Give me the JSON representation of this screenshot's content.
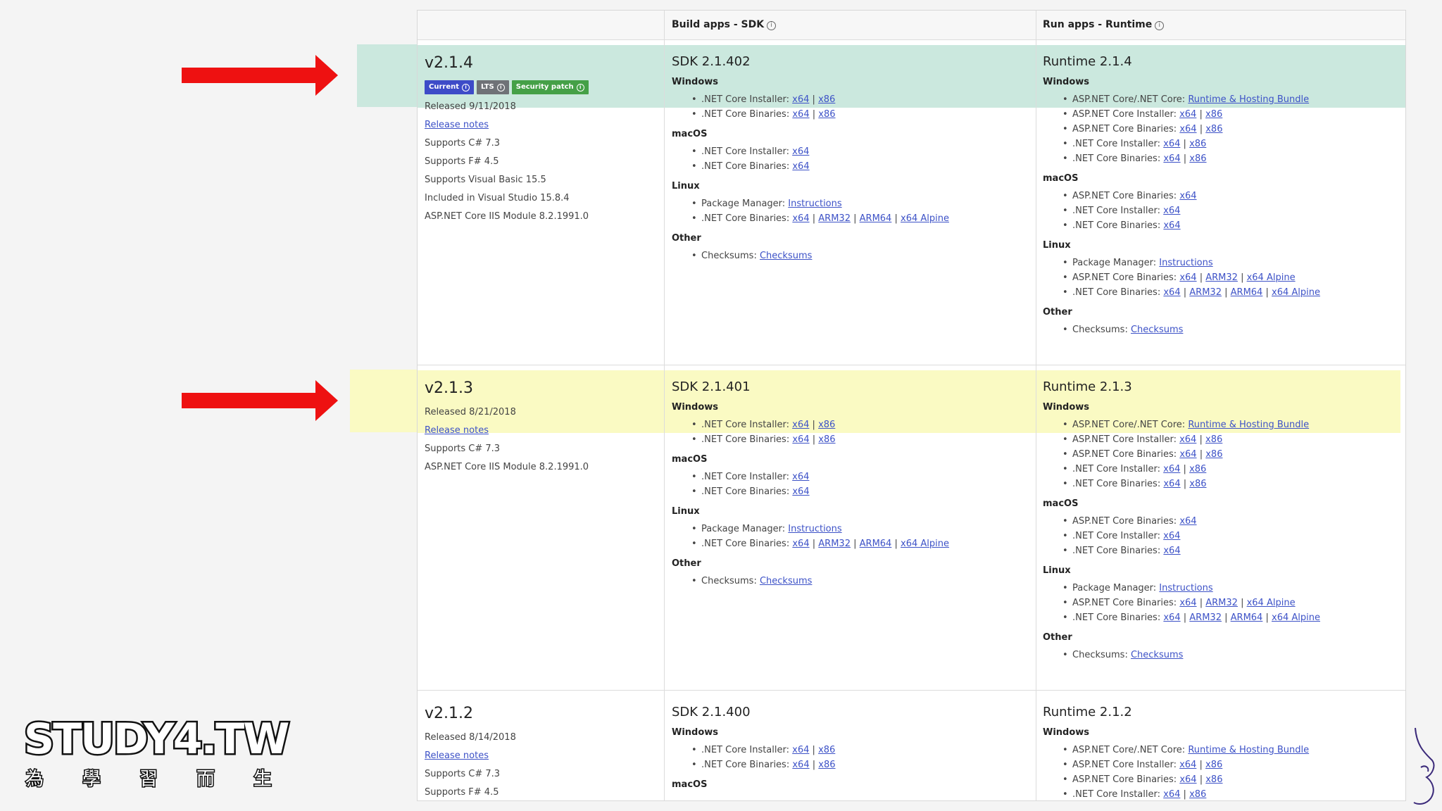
{
  "header": {
    "sdk_label": "Build apps - SDK",
    "runtime_label": "Run apps - Runtime",
    "info_glyph": "i"
  },
  "colors": {
    "green_highlight": "#cbe8de",
    "yellow_highlight": "#fafac3",
    "current_badge": "#3d4bc8",
    "lts_badge": "#6f7277",
    "security_badge": "#45a047",
    "link": "#3d52c7",
    "arrow": "#ee1111"
  },
  "releases": [
    {
      "version": "v2.1.4",
      "badges": [
        {
          "label": "Current",
          "icon": "info-icon"
        },
        {
          "label": "LTS",
          "icon": "info-icon"
        },
        {
          "label": "Security patch",
          "icon": "info-icon"
        }
      ],
      "released": "Released 9/11/2018",
      "release_notes": "Release notes",
      "info": [
        "Supports C# 7.3",
        "Supports F# 4.5",
        "Supports Visual Basic 15.5",
        "Included in Visual Studio 15.8.4",
        "ASP.NET Core IIS Module 8.2.1991.0"
      ],
      "sdk": {
        "title": "SDK 2.1.402",
        "windows": "Windows",
        "win_installer": ".NET Core Installer:",
        "win_binaries": ".NET Core Binaries:",
        "macos": "macOS",
        "mac_installer": ".NET Core Installer:",
        "mac_binaries": ".NET Core Binaries:",
        "linux": "Linux",
        "pkg_mgr": "Package Manager:",
        "instructions": "Instructions",
        "linux_binaries": ".NET Core Binaries:",
        "other": "Other",
        "checksums_label": "Checksums:",
        "checksums": "Checksums"
      },
      "runtime": {
        "title": "Runtime 2.1.4",
        "windows": "Windows",
        "win_hosting": "ASP.NET Core/.NET Core:",
        "hosting_bundle": "Runtime & Hosting Bundle",
        "win_asp_installer": "ASP.NET Core Installer:",
        "win_asp_binaries": "ASP.NET Core Binaries:",
        "win_net_installer": ".NET Core Installer:",
        "win_net_binaries": ".NET Core Binaries:",
        "macos": "macOS",
        "mac_asp_binaries": "ASP.NET Core Binaries:",
        "mac_net_installer": ".NET Core Installer:",
        "mac_net_binaries": ".NET Core Binaries:",
        "linux": "Linux",
        "pkg_mgr": "Package Manager:",
        "instructions": "Instructions",
        "linux_asp_binaries": "ASP.NET Core Binaries:",
        "linux_net_binaries": ".NET Core Binaries:",
        "other": "Other",
        "checksums_label": "Checksums:",
        "checksums": "Checksums"
      }
    },
    {
      "version": "v2.1.3",
      "released": "Released 8/21/2018",
      "release_notes": "Release notes",
      "info": [
        "Supports C# 7.3",
        "ASP.NET Core IIS Module 8.2.1991.0"
      ],
      "sdk": {
        "title": "SDK 2.1.401",
        "windows": "Windows",
        "win_installer": ".NET Core Installer:",
        "win_binaries": ".NET Core Binaries:",
        "macos": "macOS",
        "mac_installer": ".NET Core Installer:",
        "mac_binaries": ".NET Core Binaries:",
        "linux": "Linux",
        "pkg_mgr": "Package Manager:",
        "instructions": "Instructions",
        "linux_binaries": ".NET Core Binaries:",
        "other": "Other",
        "checksums_label": "Checksums:",
        "checksums": "Checksums"
      },
      "runtime": {
        "title": "Runtime 2.1.3",
        "windows": "Windows",
        "win_hosting": "ASP.NET Core/.NET Core:",
        "hosting_bundle": "Runtime & Hosting Bundle",
        "win_asp_installer": "ASP.NET Core Installer:",
        "win_asp_binaries": "ASP.NET Core Binaries:",
        "win_net_installer": ".NET Core Installer:",
        "win_net_binaries": ".NET Core Binaries:",
        "macos": "macOS",
        "mac_asp_binaries": "ASP.NET Core Binaries:",
        "mac_net_installer": ".NET Core Installer:",
        "mac_net_binaries": ".NET Core Binaries:",
        "linux": "Linux",
        "pkg_mgr": "Package Manager:",
        "instructions": "Instructions",
        "linux_asp_binaries": "ASP.NET Core Binaries:",
        "linux_net_binaries": ".NET Core Binaries:",
        "other": "Other",
        "checksums_label": "Checksums:",
        "checksums": "Checksums"
      }
    },
    {
      "version": "v2.1.2",
      "released": "Released 8/14/2018",
      "release_notes": "Release notes",
      "info": [
        "Supports C# 7.3",
        "Supports F# 4.5"
      ],
      "sdk": {
        "title": "SDK 2.1.400",
        "windows": "Windows",
        "win_installer": ".NET Core Installer:",
        "win_binaries": ".NET Core Binaries:",
        "macos": "macOS"
      },
      "runtime": {
        "title": "Runtime 2.1.2",
        "windows": "Windows",
        "win_hosting": "ASP.NET Core/.NET Core:",
        "hosting_bundle": "Runtime & Hosting Bundle",
        "win_asp_installer": "ASP.NET Core Installer:",
        "win_asp_binaries": "ASP.NET Core Binaries:",
        "win_net_installer": ".NET Core Installer:"
      }
    }
  ],
  "links": {
    "x64": "x64",
    "x86": "x86",
    "arm32": "ARM32",
    "arm64": "ARM64",
    "x64_alpine": "x64 Alpine",
    "sep": "|"
  },
  "watermark": {
    "title": "STUDY4.TW",
    "chars": [
      "為",
      "學",
      "習",
      "而",
      "生"
    ]
  }
}
